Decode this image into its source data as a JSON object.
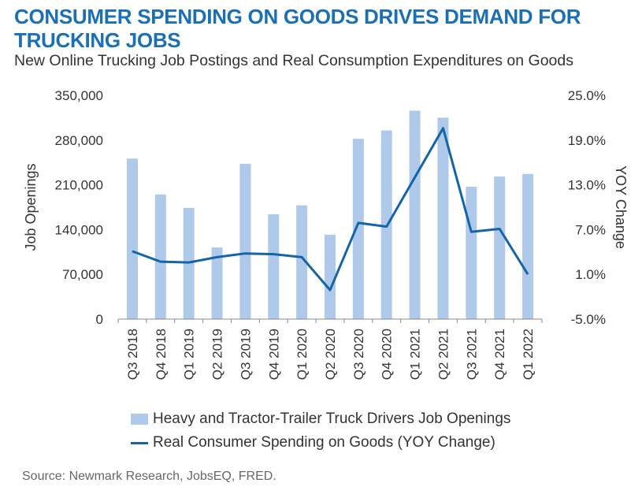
{
  "title": "CONSUMER SPENDING ON GOODS DRIVES DEMAND FOR TRUCKING JOBS",
  "subtitle": "New Online Trucking Job Postings and Real Consumption Expenditures on Goods",
  "source": "Source: Newmark Research, JobsEQ, FRED.",
  "colors": {
    "title": "#1a6fb5",
    "bar": "#aec9e9",
    "line": "#1464a8",
    "text": "#333333"
  },
  "chart_data": {
    "type": "bar",
    "categories": [
      "Q3 2018",
      "Q4 2018",
      "Q1 2019",
      "Q2 2019",
      "Q3 2019",
      "Q4 2019",
      "Q1 2020",
      "Q2 2020",
      "Q3 2020",
      "Q4 2020",
      "Q1 2021",
      "Q2 2021",
      "Q3 2021",
      "Q4 2021",
      "Q1 2022"
    ],
    "series": [
      {
        "name": "Heavy and Tractor-Trailer Truck Drivers Job Openings",
        "type": "bar",
        "axis": "left",
        "values": [
          251000,
          195000,
          174000,
          112000,
          243000,
          164000,
          178000,
          132000,
          282000,
          295000,
          326000,
          315000,
          207000,
          223000,
          227000
        ]
      },
      {
        "name": "Real Consumer Spending on Goods (YOY Change)",
        "type": "line",
        "axis": "right",
        "values": [
          4.1,
          2.7,
          2.6,
          3.3,
          3.8,
          3.7,
          3.3,
          -1.1,
          7.9,
          7.4,
          14.0,
          20.6,
          6.7,
          7.1,
          1.0
        ]
      }
    ],
    "yleft": {
      "label": "Job Openings",
      "min": 0,
      "max": 350000,
      "ticks": [
        "0",
        "70,000",
        "140,000",
        "210,000",
        "280,000",
        "350,000"
      ]
    },
    "yright": {
      "label": "YOY Change",
      "min": -5,
      "max": 25,
      "ticks": [
        "-5.0%",
        "1.0%",
        "7.0%",
        "13.0%",
        "19.0%",
        "25.0%"
      ]
    },
    "grid": false,
    "legend_position": "bottom"
  }
}
